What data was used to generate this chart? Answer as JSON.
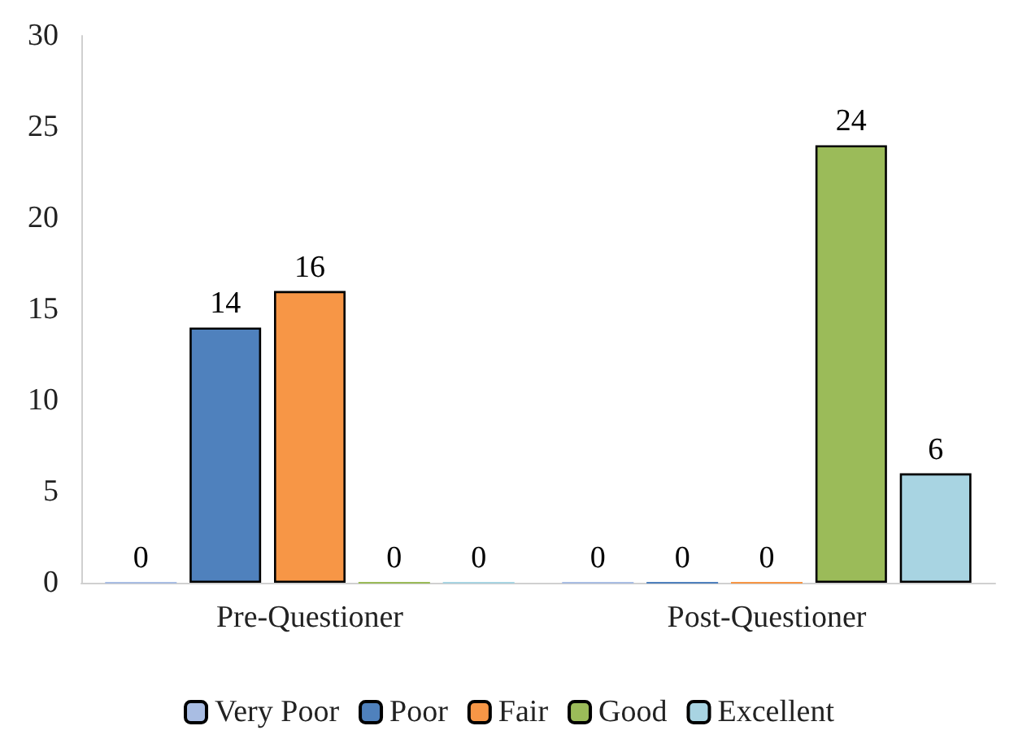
{
  "chart_data": {
    "type": "bar",
    "categories": [
      "Pre-Questioner",
      "Post-Questioner"
    ],
    "series": [
      {
        "name": "Very Poor",
        "color": "#a9bde3",
        "values": [
          0,
          0
        ]
      },
      {
        "name": "Poor",
        "color": "#4f81bd",
        "values": [
          14,
          0
        ]
      },
      {
        "name": "Fair",
        "color": "#f79646",
        "values": [
          16,
          0
        ]
      },
      {
        "name": "Good",
        "color": "#9bbb59",
        "values": [
          0,
          24
        ]
      },
      {
        "name": "Excellent",
        "color": "#a8d4e2",
        "values": [
          0,
          6
        ]
      }
    ],
    "ylim": [
      0,
      30
    ],
    "yticks": [
      0,
      5,
      10,
      15,
      20,
      25,
      30
    ],
    "grid": false,
    "legend": "bottom",
    "data_labels": true
  }
}
